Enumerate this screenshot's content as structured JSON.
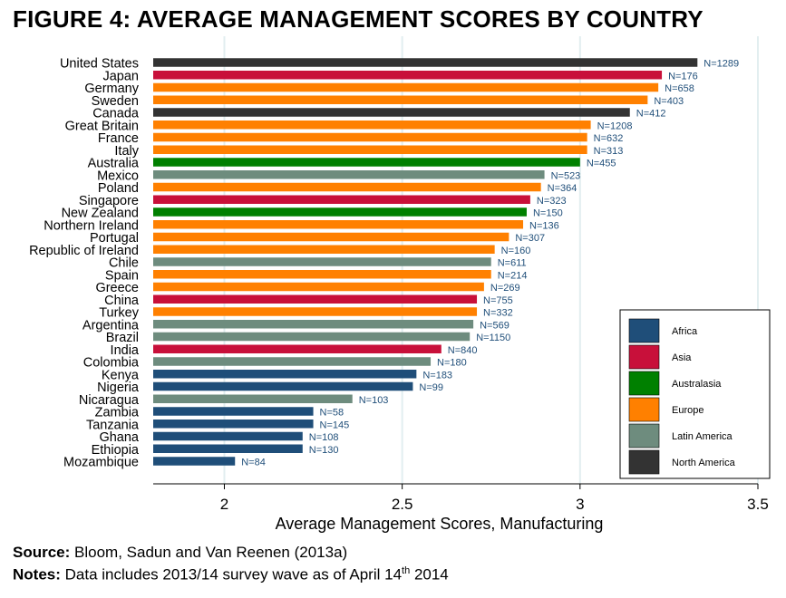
{
  "title": "FIGURE 4: AVERAGE MANAGEMENT SCORES BY COUNTRY",
  "footer": {
    "source_label": "Source:",
    "source_text": "Bloom, Sadun and Van Reenen (2013a)",
    "notes_label": "Notes:",
    "notes_text": "Data includes 2013/14 survey wave as of April 14",
    "notes_sup": "th",
    "notes_tail": " 2014"
  },
  "chart_data": {
    "type": "bar",
    "orientation": "horizontal",
    "xlabel": "Average Management Scores, Manufacturing",
    "xlim": [
      1.8,
      3.5
    ],
    "xticks": [
      2,
      2.5,
      3,
      3.5
    ],
    "xtick_labels": [
      "2",
      "2.5",
      "3",
      "3.5"
    ],
    "grid": true,
    "legend_position": "bottom-right",
    "regions": [
      {
        "name": "Africa",
        "color": "#1f4e79"
      },
      {
        "name": "Asia",
        "color": "#c8103a"
      },
      {
        "name": "Australasia",
        "color": "#008000"
      },
      {
        "name": "Europe",
        "color": "#ff8000"
      },
      {
        "name": "Latin America",
        "color": "#6e8c7e"
      },
      {
        "name": "North America",
        "color": "#333333"
      }
    ],
    "bars": [
      {
        "country": "United States",
        "value": 3.33,
        "n_label": "N=1289",
        "region": "North America"
      },
      {
        "country": "Japan",
        "value": 3.23,
        "n_label": "N=176",
        "region": "Asia"
      },
      {
        "country": "Germany",
        "value": 3.22,
        "n_label": "N=658",
        "region": "Europe"
      },
      {
        "country": "Sweden",
        "value": 3.19,
        "n_label": "N=403",
        "region": "Europe"
      },
      {
        "country": "Canada",
        "value": 3.14,
        "n_label": "N=412",
        "region": "North America"
      },
      {
        "country": "Great Britain",
        "value": 3.03,
        "n_label": "N=1208",
        "region": "Europe"
      },
      {
        "country": "France",
        "value": 3.02,
        "n_label": "N=632",
        "region": "Europe"
      },
      {
        "country": "Italy",
        "value": 3.02,
        "n_label": "N=313",
        "region": "Europe"
      },
      {
        "country": "Australia",
        "value": 3.0,
        "n_label": "N=455",
        "region": "Australasia"
      },
      {
        "country": "Mexico",
        "value": 2.9,
        "n_label": "N=523",
        "region": "Latin America"
      },
      {
        "country": "Poland",
        "value": 2.89,
        "n_label": "N=364",
        "region": "Europe"
      },
      {
        "country": "Singapore",
        "value": 2.86,
        "n_label": "N=323",
        "region": "Asia"
      },
      {
        "country": "New Zealand",
        "value": 2.85,
        "n_label": "N=150",
        "region": "Australasia"
      },
      {
        "country": "Northern Ireland",
        "value": 2.84,
        "n_label": "N=136",
        "region": "Europe"
      },
      {
        "country": "Portugal",
        "value": 2.8,
        "n_label": "N=307",
        "region": "Europe"
      },
      {
        "country": "Republic of Ireland",
        "value": 2.76,
        "n_label": "N=160",
        "region": "Europe"
      },
      {
        "country": "Chile",
        "value": 2.75,
        "n_label": "N=611",
        "region": "Latin America"
      },
      {
        "country": "Spain",
        "value": 2.75,
        "n_label": "N=214",
        "region": "Europe"
      },
      {
        "country": "Greece",
        "value": 2.73,
        "n_label": "N=269",
        "region": "Europe"
      },
      {
        "country": "China",
        "value": 2.71,
        "n_label": "N=755",
        "region": "Asia"
      },
      {
        "country": "Turkey",
        "value": 2.71,
        "n_label": "N=332",
        "region": "Europe"
      },
      {
        "country": "Argentina",
        "value": 2.7,
        "n_label": "N=569",
        "region": "Latin America"
      },
      {
        "country": "Brazil",
        "value": 2.69,
        "n_label": "N=1150",
        "region": "Latin America"
      },
      {
        "country": "India",
        "value": 2.61,
        "n_label": "N=840",
        "region": "Asia"
      },
      {
        "country": "Colombia",
        "value": 2.58,
        "n_label": "N=180",
        "region": "Latin America"
      },
      {
        "country": "Kenya",
        "value": 2.54,
        "n_label": "N=183",
        "region": "Africa"
      },
      {
        "country": "Nigeria",
        "value": 2.53,
        "n_label": "N=99",
        "region": "Africa"
      },
      {
        "country": "Nicaragua",
        "value": 2.36,
        "n_label": "N=103",
        "region": "Latin America"
      },
      {
        "country": "Zambia",
        "value": 2.25,
        "n_label": "N=58",
        "region": "Africa"
      },
      {
        "country": "Tanzania",
        "value": 2.25,
        "n_label": "N=145",
        "region": "Africa"
      },
      {
        "country": "Ghana",
        "value": 2.22,
        "n_label": "N=108",
        "region": "Africa"
      },
      {
        "country": "Ethiopia",
        "value": 2.22,
        "n_label": "N=130",
        "region": "Africa"
      },
      {
        "country": "Mozambique",
        "value": 2.03,
        "n_label": "N=84",
        "region": "Africa"
      }
    ]
  }
}
